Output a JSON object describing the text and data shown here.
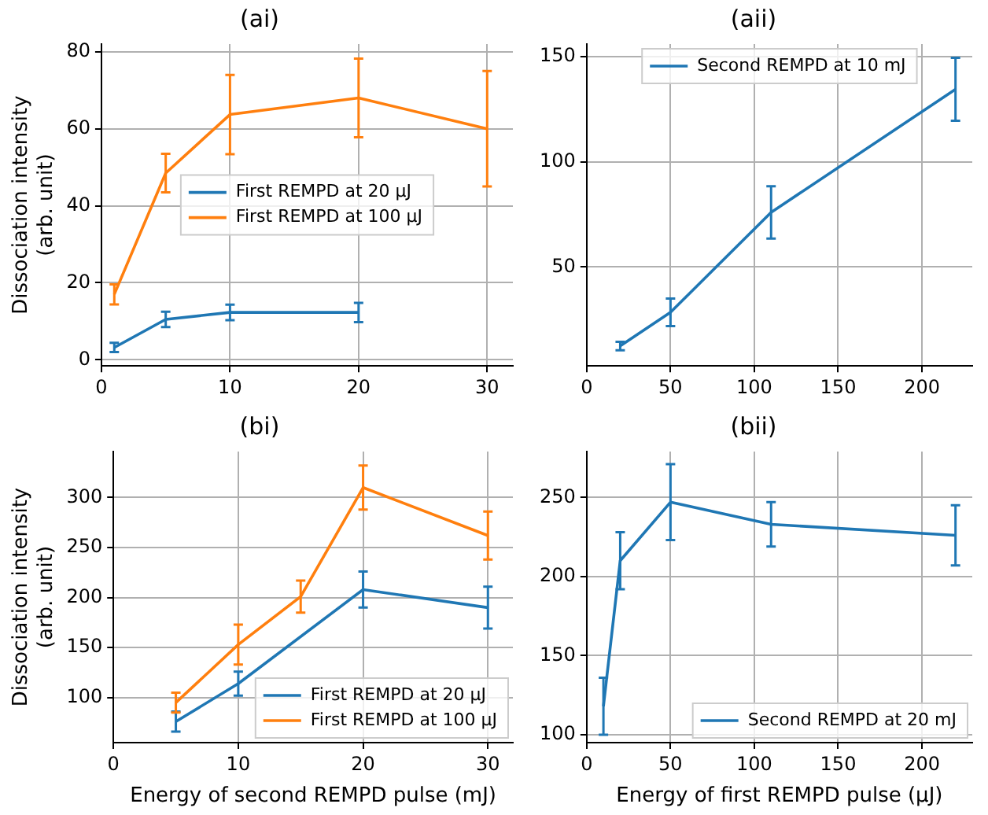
{
  "chart_data": [
    {
      "type": "line",
      "title": "(ai)",
      "ylabel": "Dissociation intensity\n(arb. unit)",
      "xlim": [
        0,
        32
      ],
      "xticks": [
        0,
        10,
        20,
        30
      ],
      "ylim": [
        -1.6,
        82
      ],
      "yticks": [
        0,
        20,
        40,
        60,
        80
      ],
      "grid": true,
      "legend": "center",
      "series": [
        {
          "name": "First REMPD at 20 µJ",
          "color": "#1f77b4",
          "x": [
            1,
            5,
            10,
            20
          ],
          "values": [
            3.2,
            10.5,
            12.3,
            12.3
          ],
          "errors": [
            1.2,
            2,
            2,
            2.5
          ]
        },
        {
          "name": "First REMPD at 100 µJ",
          "color": "#ff7f0e",
          "x": [
            1,
            5,
            10,
            20,
            30
          ],
          "values": [
            17,
            48.5,
            63.7,
            68,
            60
          ],
          "errors": [
            2.6,
            5,
            10.3,
            10.2,
            15
          ]
        }
      ]
    },
    {
      "type": "line",
      "title": "(aii)",
      "xlim": [
        0,
        230
      ],
      "xticks": [
        0,
        50,
        100,
        150,
        200
      ],
      "ylim": [
        3,
        156
      ],
      "yticks": [
        50,
        100,
        150
      ],
      "grid": true,
      "legend": "top",
      "series": [
        {
          "name": "Second REMPD at 10 mJ",
          "color": "#1f77b4",
          "x": [
            20,
            50,
            110,
            220
          ],
          "values": [
            12.5,
            28.5,
            76,
            134.5
          ],
          "errors": [
            2,
            6.5,
            12.4,
            15
          ]
        }
      ]
    },
    {
      "type": "line",
      "title": "(bi)",
      "ylabel": "Dissociation intensity\n(arb. unit)",
      "xlabel": "Energy of second REMPD pulse (mJ)",
      "xlim": [
        0,
        32
      ],
      "xticks": [
        0,
        10,
        20,
        30
      ],
      "ylim": [
        55,
        346
      ],
      "yticks": [
        100,
        150,
        200,
        250,
        300
      ],
      "grid": true,
      "legend": "bottom right",
      "series": [
        {
          "name": "First REMPD at 20 µJ",
          "color": "#1f77b4",
          "x": [
            5,
            10,
            20,
            30
          ],
          "values": [
            76,
            114,
            208,
            190
          ],
          "errors": [
            10,
            12,
            18,
            21
          ]
        },
        {
          "name": "First REMPD at 100 µJ",
          "color": "#ff7f0e",
          "x": [
            5,
            10,
            15,
            20,
            30
          ],
          "values": [
            95,
            153,
            201,
            310,
            262
          ],
          "errors": [
            10,
            20,
            16,
            22,
            24
          ]
        }
      ]
    },
    {
      "type": "line",
      "title": "(bii)",
      "xlabel": "Energy of first REMPD pulse (µJ)",
      "xlim": [
        0,
        230
      ],
      "xticks": [
        0,
        50,
        100,
        150,
        200
      ],
      "ylim": [
        95,
        279
      ],
      "yticks": [
        100,
        150,
        200,
        250
      ],
      "grid": true,
      "legend": "bottom right",
      "series": [
        {
          "name": "Second REMPD at 20 mJ",
          "color": "#1f77b4",
          "x": [
            10,
            20,
            50,
            110,
            220
          ],
          "values": [
            118,
            210,
            247,
            233,
            226
          ],
          "errors": [
            18,
            18,
            24,
            14,
            19
          ]
        }
      ]
    }
  ]
}
